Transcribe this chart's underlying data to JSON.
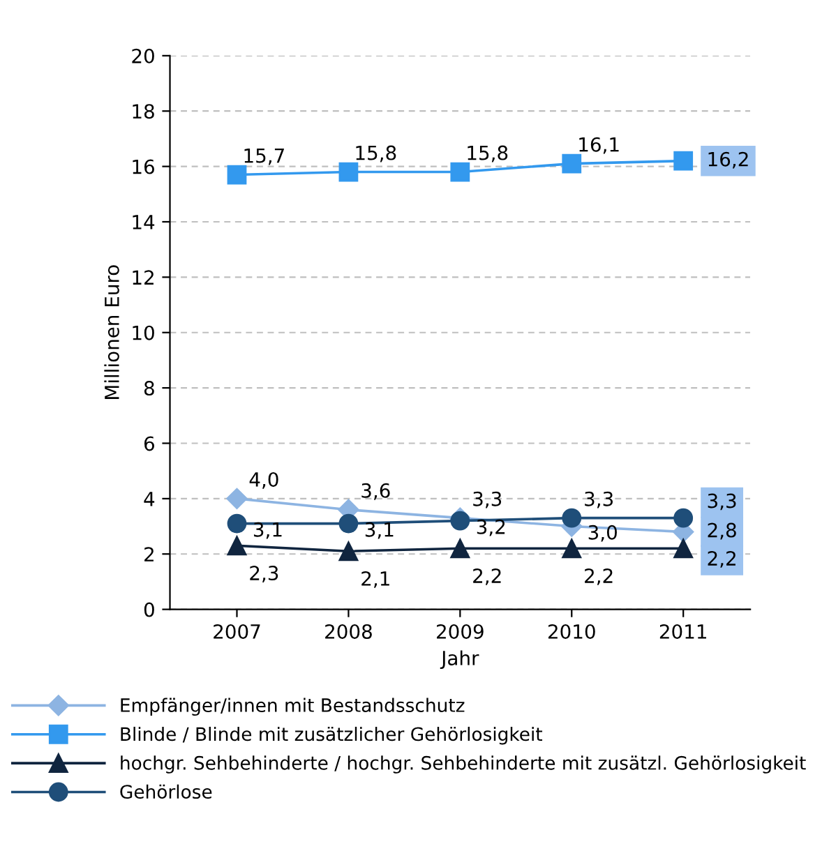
{
  "chart_data": {
    "type": "line",
    "xlabel": "Jahr",
    "ylabel": "Millionen Euro",
    "categories": [
      "2007",
      "2008",
      "2009",
      "2010",
      "2011"
    ],
    "ylim": [
      0,
      20
    ],
    "yticks": [
      0,
      2,
      4,
      6,
      8,
      10,
      12,
      14,
      16,
      18,
      20
    ],
    "grid": "y",
    "legend": "bottom",
    "series": [
      {
        "name": "Empfänger/innen mit Bestandsschutz",
        "color": "#8db4e2",
        "marker": "diamond",
        "values": [
          4.0,
          3.6,
          3.3,
          3.0,
          2.8
        ],
        "value_labels": [
          "4,0",
          "3,6",
          "3,3",
          "3,0",
          "2,8"
        ]
      },
      {
        "name": "Blinde / Blinde mit zusätzlicher Gehörlosigkeit",
        "color": "#3399ee",
        "marker": "square",
        "values": [
          15.7,
          15.8,
          15.8,
          16.1,
          16.2
        ],
        "value_labels": [
          "15,7",
          "15,8",
          "15,8",
          "16,1",
          "16,2"
        ]
      },
      {
        "name": "hochgr. Sehbehinderte / hochgr. Sehbehinderte mit zusätzl. Gehörlosigkeit",
        "color": "#10253f",
        "marker": "triangle",
        "values": [
          2.3,
          2.1,
          2.2,
          2.2,
          2.2
        ],
        "value_labels": [
          "2,3",
          "2,1",
          "2,2",
          "2,2",
          "2,2"
        ]
      },
      {
        "name": "Gehörlose",
        "color": "#1f4e79",
        "marker": "circle",
        "values": [
          3.1,
          3.1,
          3.2,
          3.3,
          3.3
        ],
        "value_labels": [
          "3,1",
          "3,1",
          "3,2",
          "3,3",
          "3,3"
        ]
      }
    ]
  }
}
